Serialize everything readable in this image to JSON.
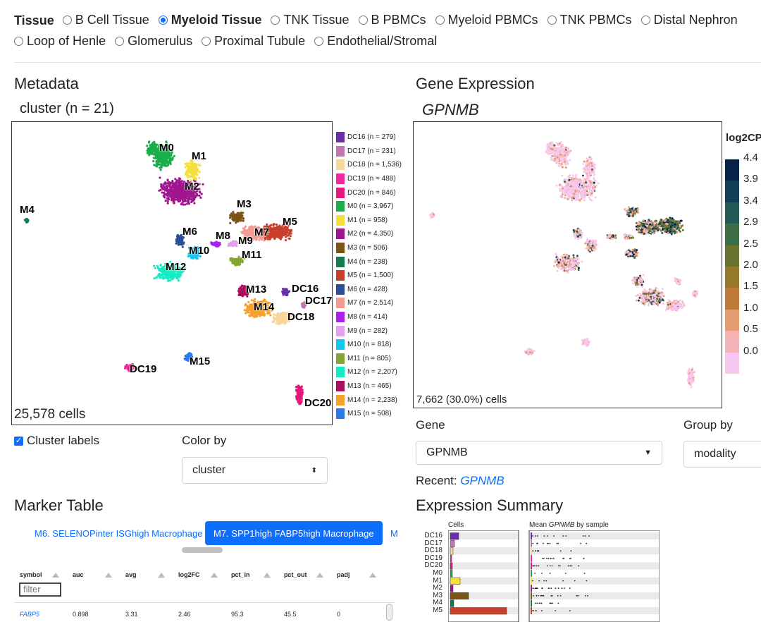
{
  "tissue": {
    "label": "Tissue",
    "options": [
      {
        "label": "B Cell Tissue",
        "active": false
      },
      {
        "label": "Myeloid Tissue",
        "active": true
      },
      {
        "label": "TNK Tissue",
        "active": false
      },
      {
        "label": "B PBMCs",
        "active": false
      },
      {
        "label": "Myeloid PBMCs",
        "active": false
      },
      {
        "label": "TNK PBMCs",
        "active": false
      },
      {
        "label": "Distal Nephron",
        "active": false
      },
      {
        "label": "Loop of Henle",
        "active": false
      },
      {
        "label": "Glomerulus",
        "active": false
      },
      {
        "label": "Proximal Tubule",
        "active": false
      },
      {
        "label": "Endothelial/Stromal",
        "active": false
      }
    ]
  },
  "metadata": {
    "heading": "Metadata",
    "subtitle": "cluster (n = 21)",
    "cells": "25,578 cells",
    "legend": [
      {
        "label": "DC16 (n = 279)",
        "color": "#6a2fa8"
      },
      {
        "label": "DC17 (n = 231)",
        "color": "#c476b0"
      },
      {
        "label": "DC18 (n = 1,536)",
        "color": "#f6d79a"
      },
      {
        "label": "DC19 (n = 488)",
        "color": "#ee2a9c"
      },
      {
        "label": "DC20 (n = 846)",
        "color": "#e8177d"
      },
      {
        "label": "M0 (n = 3,967)",
        "color": "#1aae4b"
      },
      {
        "label": "M1 (n = 958)",
        "color": "#f6df3a"
      },
      {
        "label": "M2 (n = 4,350)",
        "color": "#a0168f"
      },
      {
        "label": "M3 (n = 506)",
        "color": "#7b5516"
      },
      {
        "label": "M4 (n = 238)",
        "color": "#167a4b"
      },
      {
        "label": "M5 (n = 1,500)",
        "color": "#c8402c"
      },
      {
        "label": "M6 (n = 428)",
        "color": "#2d4f9a"
      },
      {
        "label": "M7 (n = 2,514)",
        "color": "#f29c94"
      },
      {
        "label": "M8 (n = 414)",
        "color": "#a822ee"
      },
      {
        "label": "M9 (n = 282)",
        "color": "#e2a1ee"
      },
      {
        "label": "M10 (n = 818)",
        "color": "#16c6ee"
      },
      {
        "label": "M11 (n = 805)",
        "color": "#86a431"
      },
      {
        "label": "M12 (n = 2,207)",
        "color": "#14ecc4"
      },
      {
        "label": "M13 (n = 465)",
        "color": "#aa0f5e"
      },
      {
        "label": "M14 (n = 2,238)",
        "color": "#f6a12a"
      },
      {
        "label": "M15 (n = 508)",
        "color": "#2b7bee"
      }
    ],
    "cluster_labels": [
      "M0",
      "M1",
      "M2",
      "M3",
      "M4",
      "M5",
      "M6",
      "M7",
      "M8",
      "M9",
      "M10",
      "M11",
      "M12",
      "M13",
      "M14",
      "M15",
      "DC16",
      "DC17",
      "DC18",
      "DC19",
      "DC20"
    ],
    "show_labels_label": "Cluster labels",
    "color_by_label": "Color by",
    "color_by_value": "cluster"
  },
  "gene": {
    "heading": "Gene Expression",
    "gene_name": "GPNMB",
    "cells": "7,662 (30.0%) cells",
    "gene_label": "Gene",
    "gene_value": "GPNMB",
    "group_by_label": "Group by",
    "group_by_value": "modality",
    "recent_label": "Recent:",
    "recent_gene": "GPNMB",
    "colorbar_title": "log2CP",
    "colorbar_ticks": [
      "4.4",
      "3.9",
      "3.4",
      "2.9",
      "2.5",
      "2.0",
      "1.5",
      "1.0",
      "0.5",
      "0.0"
    ],
    "colorbar_colors": [
      "#08214a",
      "#123e5a",
      "#235a55",
      "#3d6e45",
      "#68752f",
      "#94782c",
      "#c07b38",
      "#e49c70",
      "#f4b4b8",
      "#f8c9ef"
    ]
  },
  "marker_table": {
    "heading": "Marker Table",
    "tabs": [
      {
        "label": "M6. SELENOPinter ISGhigh Macrophage",
        "active": false
      },
      {
        "label": "M7. SPP1high FABP5high Macrophage",
        "active": true
      },
      {
        "label": "M",
        "active": false
      }
    ],
    "columns": [
      "symbol",
      "auc",
      "avg",
      "log2FC",
      "pct_in",
      "pct_out",
      "padj"
    ],
    "filter_placeholder": "filter",
    "rows": [
      {
        "symbol": "FABP5",
        "auc": "0.898",
        "avg": "3.31",
        "log2FC": "2.46",
        "pct_in": "95.3",
        "pct_out": "45.5",
        "padj": "0"
      }
    ]
  },
  "summary": {
    "heading": "Expression Summary",
    "cells_label": "Cells",
    "mean_label_prefix": "Mean",
    "mean_label_gene": "GPNMB",
    "mean_label_suffix": "by sample",
    "row_labels": [
      "DC16",
      "DC17",
      "DC18",
      "DC19",
      "DC20",
      "M0",
      "M1",
      "M2",
      "M3",
      "M4",
      "M5"
    ]
  }
}
